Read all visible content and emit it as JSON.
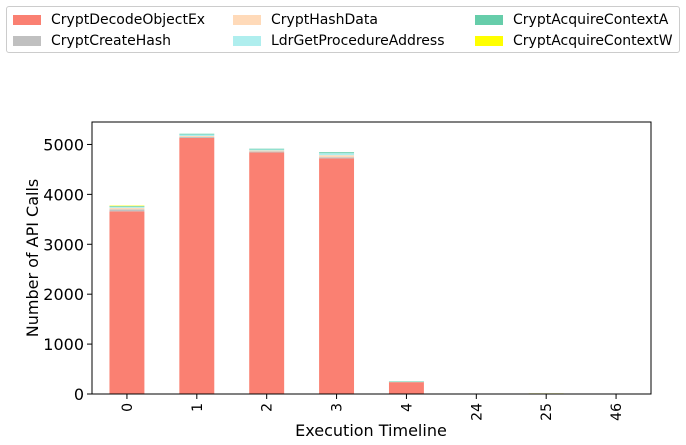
{
  "chart_data": {
    "type": "bar",
    "stacked": true,
    "xlabel": "Execution Timeline",
    "ylabel": "Number of API Calls",
    "categories": [
      "0",
      "1",
      "2",
      "3",
      "4",
      "24",
      "25",
      "46"
    ],
    "ylim": [
      0,
      5450
    ],
    "yticks": [
      0,
      1000,
      2000,
      3000,
      4000,
      5000
    ],
    "legend_position": "top",
    "series": [
      {
        "name": "CryptDecodeObjectEx",
        "color": "#fa8072",
        "values": [
          3660,
          5130,
          4840,
          4720,
          240,
          0,
          0,
          0
        ]
      },
      {
        "name": "CryptCreateHash",
        "color": "#c0c0c0",
        "values": [
          40,
          20,
          20,
          25,
          5,
          0,
          0,
          0
        ]
      },
      {
        "name": "CryptHashData",
        "color": "#ffdab9",
        "values": [
          30,
          20,
          20,
          40,
          3,
          0,
          0,
          0
        ]
      },
      {
        "name": "LdrGetProcedureAddress",
        "color": "#afeeee",
        "values": [
          20,
          30,
          20,
          40,
          2,
          0,
          0,
          0
        ]
      },
      {
        "name": "CryptAcquireContextA",
        "color": "#66cdaa",
        "values": [
          15,
          15,
          15,
          20,
          2,
          0,
          0,
          0
        ]
      },
      {
        "name": "CryptAcquireContextW",
        "color": "#ffff00",
        "values": [
          10,
          0,
          0,
          0,
          0,
          0,
          12,
          0
        ]
      }
    ]
  },
  "extra_series_colors": {
    "CryptDecodeObjectEx_light": "#d4f0a0"
  }
}
